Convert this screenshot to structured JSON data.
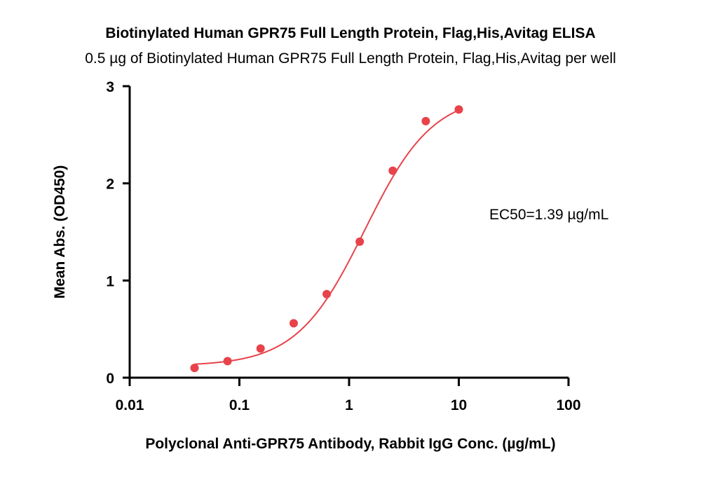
{
  "chart_data": {
    "type": "scatter",
    "title": "Biotinylated Human GPR75 Full Length Protein, Flag,His,Avitag ELISA",
    "subtitle": "0.5 µg of Biotinylated Human GPR75 Full Length Protein, Flag,His,Avitag per well",
    "xlabel": "Polyclonal Anti-GPR75 Antibody, Rabbit IgG Conc. (µg/mL)",
    "ylabel": "Mean Abs. (OD450)",
    "x_scale": "log",
    "xlim": [
      0.01,
      100
    ],
    "ylim": [
      0,
      3
    ],
    "x_ticks": [
      0.01,
      0.1,
      1,
      10,
      100
    ],
    "x_tick_labels": [
      "0.01",
      "0.1",
      "1",
      "10",
      "100"
    ],
    "y_ticks": [
      0,
      1,
      2,
      3
    ],
    "y_tick_labels": [
      "0",
      "1",
      "2",
      "3"
    ],
    "grid": false,
    "color": "#e8424a",
    "series": [
      {
        "points": [
          {
            "x": 0.039,
            "y": 0.1
          },
          {
            "x": 0.078,
            "y": 0.17
          },
          {
            "x": 0.156,
            "y": 0.3
          },
          {
            "x": 0.3125,
            "y": 0.56
          },
          {
            "x": 0.625,
            "y": 0.86
          },
          {
            "x": 1.25,
            "y": 1.4
          },
          {
            "x": 2.5,
            "y": 2.13
          },
          {
            "x": 5,
            "y": 2.64
          },
          {
            "x": 10,
            "y": 2.76
          }
        ]
      }
    ],
    "fit_curve": {
      "model": "4PL",
      "bottom": 0.12,
      "top": 2.92,
      "ec50": 1.39,
      "hill": 1.4
    },
    "annotations": [
      {
        "text": "EC50=1.39 µg/mL"
      }
    ]
  }
}
